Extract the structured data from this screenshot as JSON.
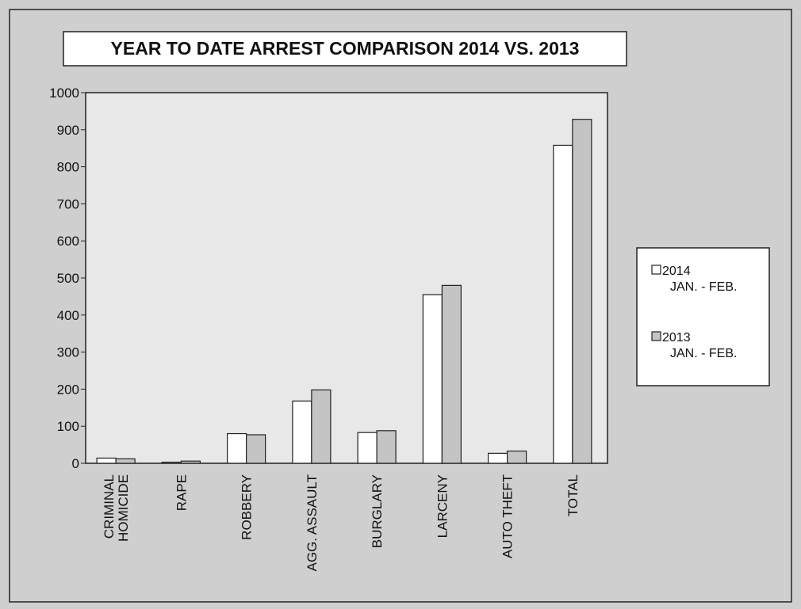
{
  "chart_data": {
    "type": "bar",
    "title": "YEAR TO DATE ARREST COMPARISON 2014 VS. 2013",
    "categories": [
      "CRIMINAL\nHOMICIDE",
      "RAPE",
      "ROBBERY",
      "AGG. ASSAULT",
      "BURGLARY",
      "LARCENY",
      "AUTO THEFT",
      "TOTAL"
    ],
    "series": [
      {
        "name": "2014\nJAN. - FEB.",
        "color": "#ffffff",
        "values": [
          14,
          3,
          80,
          168,
          83,
          455,
          27,
          858
        ]
      },
      {
        "name": "2013\nJAN. - FEB.",
        "color": "#c4c4c4",
        "values": [
          12,
          6,
          77,
          198,
          88,
          480,
          33,
          928
        ]
      }
    ],
    "ylim": [
      0,
      1000
    ],
    "yticks": [
      0,
      100,
      200,
      300,
      400,
      500,
      600,
      700,
      800,
      900,
      1000
    ],
    "grid": false,
    "legend": "right"
  }
}
